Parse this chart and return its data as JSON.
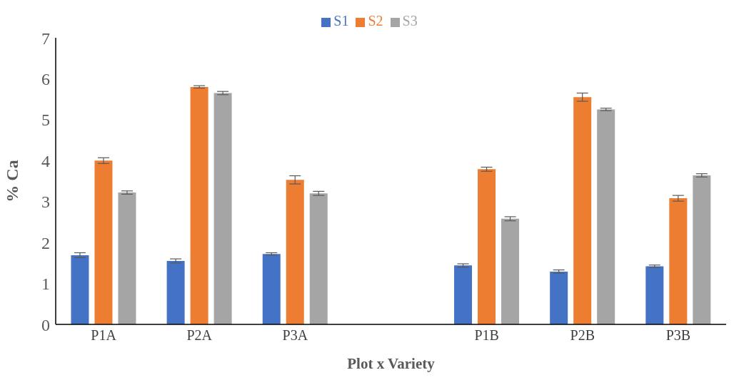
{
  "chart_data": {
    "type": "bar",
    "xlabel": "Plot x Variety",
    "ylabel": "% Ca",
    "categories": [
      "P1A",
      "P2A",
      "P3A",
      null,
      "P1B",
      "P2B",
      "P3B"
    ],
    "series": [
      {
        "name": "S1",
        "color": "#4472c4",
        "values": [
          1.69,
          1.55,
          1.72,
          null,
          1.44,
          1.29,
          1.42
        ],
        "errors": [
          0.06,
          0.05,
          0.03,
          null,
          0.04,
          0.04,
          0.03
        ]
      },
      {
        "name": "S2",
        "color": "#ed7d31",
        "values": [
          4.0,
          5.8,
          3.53,
          null,
          3.79,
          5.55,
          3.08
        ],
        "errors": [
          0.07,
          0.03,
          0.1,
          null,
          0.05,
          0.1,
          0.07
        ]
      },
      {
        "name": "S3",
        "color": "#a5a5a5",
        "values": [
          3.22,
          5.65,
          3.2,
          null,
          2.58,
          5.25,
          3.64
        ],
        "errors": [
          0.04,
          0.04,
          0.05,
          null,
          0.05,
          0.03,
          0.04
        ]
      }
    ],
    "ylim": [
      0,
      7
    ],
    "yticks": [
      0,
      1,
      2,
      3,
      4,
      5,
      6,
      7
    ],
    "grid": false,
    "legend": "top"
  }
}
